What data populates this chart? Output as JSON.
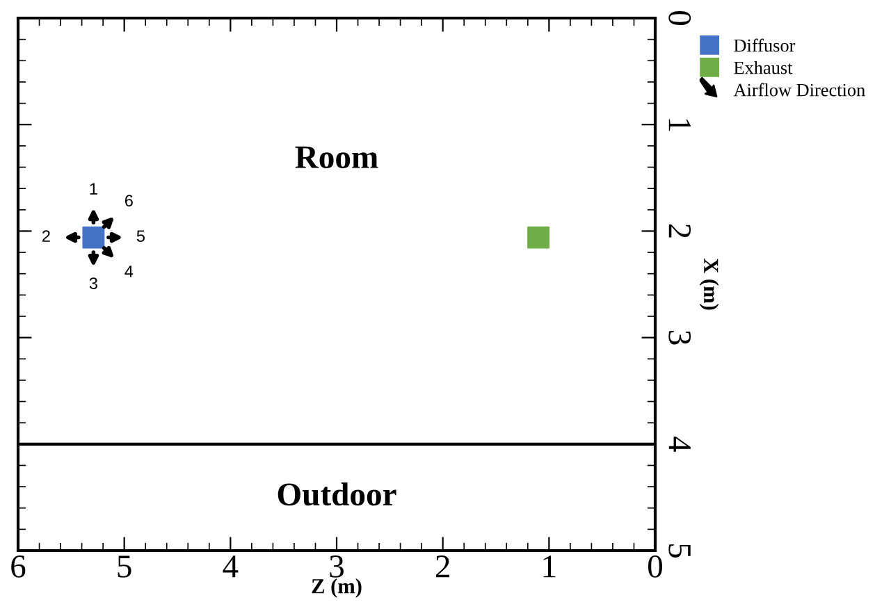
{
  "chart_data": {
    "type": "scatter",
    "xlabel": "Z (m)",
    "ylabel": "X (m)",
    "xlim": [
      6,
      0
    ],
    "ylim": [
      5,
      0
    ],
    "xticks": [
      6,
      5,
      4,
      3,
      2,
      1,
      0
    ],
    "yticks": [
      0,
      1,
      2,
      3,
      4,
      5
    ],
    "marker": "square",
    "legend": "top right",
    "grid": false,
    "series": [
      {
        "name": "Diffusor",
        "color": "#4472c4",
        "x": [
          5.29
        ],
        "values": [
          2.06
        ]
      },
      {
        "name": "Exhaust",
        "color": "#70ad47",
        "x": [
          1.1
        ],
        "values": [
          2.06
        ]
      }
    ],
    "ref_lines": [
      {
        "axis": "y",
        "value": 4,
        "label": null,
        "color": "#000000"
      }
    ],
    "annotations": [
      "Room",
      "Outdoor",
      "Airflow Direction",
      "1",
      "2",
      "3",
      "4",
      "5",
      "6"
    ]
  }
}
